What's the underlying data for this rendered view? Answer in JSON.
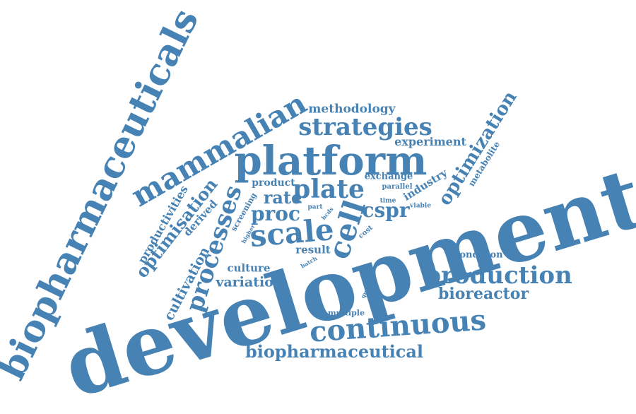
{
  "color": "#4682b4",
  "words": {
    "development": "development",
    "biopharmaceuticals": "biopharmaceuticals",
    "platform": "platform",
    "mammalian": "mammalian",
    "continuous": "continuous",
    "production": "production",
    "strategies": "strategies",
    "scale": "scale",
    "processes": "processes",
    "cell": "cell",
    "plate": "plate",
    "biopharmaceutical": "biopharmaceutical",
    "optimization": "optimization",
    "methodology": "methodology",
    "optimisation": "optimisation",
    "rate": "rate",
    "proc": "proc",
    "cspr": "cspr",
    "bioreactor": "bioreactor",
    "cultivation": "cultivation",
    "productivities": "productivities",
    "variation": "variation",
    "experiment": "experiment",
    "industry": "industry",
    "culture": "culture",
    "result": "result",
    "derived": "derived",
    "product": "product",
    "exchange": "exchange",
    "metabolite": "metabolite",
    "condition": "condition",
    "multiple": "multiple",
    "screening": "screening",
    "parallel": "parallel",
    "cost": "cost",
    "time": "time",
    "viable": "viable",
    "part": "part",
    "hcds": "hcds",
    "higher": "higher",
    "batch": "batch",
    "quality": "quality"
  }
}
